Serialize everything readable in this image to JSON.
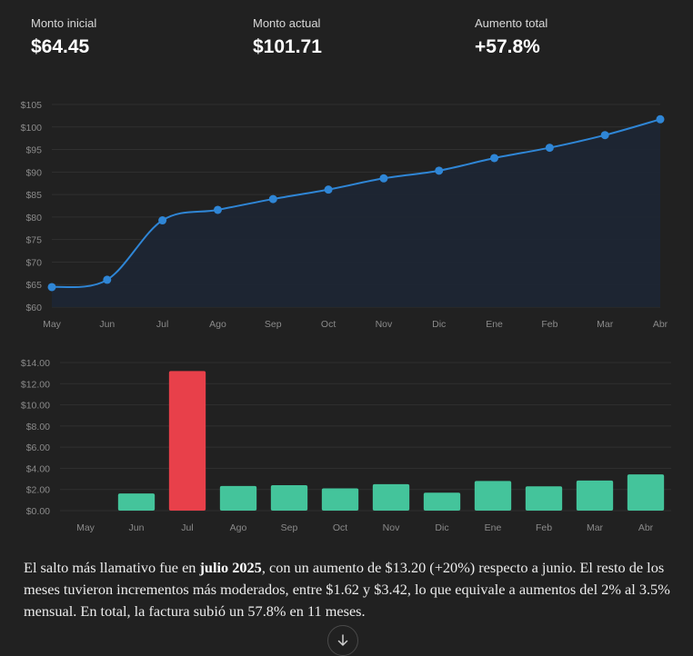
{
  "stats": [
    {
      "label": "Monto inicial",
      "value": "$64.45"
    },
    {
      "label": "Monto actual",
      "value": "$101.71"
    },
    {
      "label": "Aumento total",
      "value": "+57.8%"
    }
  ],
  "chart_data": [
    {
      "type": "line",
      "title": "",
      "categories": [
        "May",
        "Jun",
        "Jul",
        "Ago",
        "Sep",
        "Oct",
        "Nov",
        "Dic",
        "Ene",
        "Feb",
        "Mar",
        "Abr"
      ],
      "values": [
        64.45,
        66.07,
        79.27,
        81.6,
        84.0,
        86.1,
        88.6,
        90.3,
        93.1,
        95.4,
        98.2,
        101.71
      ],
      "ylim": [
        60,
        105
      ],
      "yticks": [
        60,
        65,
        70,
        75,
        80,
        85,
        90,
        95,
        100,
        105
      ],
      "ytick_labels": [
        "$60",
        "$65",
        "$70",
        "$75",
        "$80",
        "$85",
        "$90",
        "$95",
        "$100",
        "$105"
      ],
      "line_color": "#2f86d6",
      "fill_color": "#1d2634",
      "grid": true
    },
    {
      "type": "bar",
      "title": "",
      "categories": [
        "May",
        "Jun",
        "Jul",
        "Ago",
        "Sep",
        "Oct",
        "Nov",
        "Dic",
        "Ene",
        "Feb",
        "Mar",
        "Abr"
      ],
      "values": [
        0,
        1.62,
        13.2,
        2.33,
        2.4,
        2.1,
        2.5,
        1.7,
        2.8,
        2.3,
        2.85,
        3.42
      ],
      "ylim": [
        0,
        14
      ],
      "yticks": [
        0,
        2,
        4,
        6,
        8,
        10,
        12,
        14
      ],
      "ytick_labels": [
        "$0.00",
        "$2.00",
        "$4.00",
        "$6.00",
        "$8.00",
        "$10.00",
        "$12.00",
        "$14.00"
      ],
      "bar_color": "#44c49b",
      "highlight_index": 2,
      "highlight_color": "#e8404a",
      "grid": true
    }
  ],
  "summary": {
    "part1": "El salto más llamativo fue en ",
    "bold": "julio 2025",
    "part2": ", con un aumento de $13.20 (+20%) respecto a junio. El resto de los meses tuvieron incrementos más moderados, entre $1.62 y $3.42, lo que equivale a aumentos del 2% al 3.5% mensual. En total, la factura subió un 57.8% en 11 meses."
  },
  "icons": {
    "scroll": "arrow-down-icon"
  }
}
